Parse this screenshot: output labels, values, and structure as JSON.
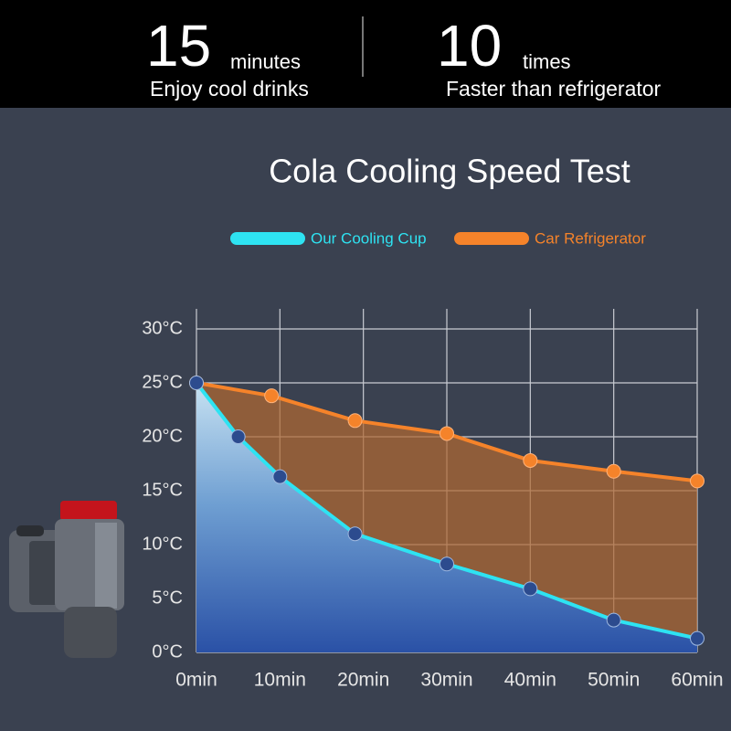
{
  "header": {
    "left": {
      "number": "15",
      "unit": "minutes",
      "caption": "Enjoy cool drinks"
    },
    "right": {
      "number": "10",
      "unit": "times",
      "caption": "Faster than refrigerator"
    }
  },
  "chart_data": {
    "type": "line",
    "title": "Cola Cooling Speed Test",
    "xlim": [
      0,
      60
    ],
    "xticks": [
      {
        "value": 0,
        "label": "0min"
      },
      {
        "value": 10,
        "label": "10min"
      },
      {
        "value": 20,
        "label": "20min"
      },
      {
        "value": 30,
        "label": "30min"
      },
      {
        "value": 40,
        "label": "40min"
      },
      {
        "value": 50,
        "label": "50min"
      },
      {
        "value": 60,
        "label": "60min"
      }
    ],
    "ylim": [
      0,
      30
    ],
    "yticks": [
      {
        "value": 0,
        "label": "0°C"
      },
      {
        "value": 5,
        "label": "5°C"
      },
      {
        "value": 10,
        "label": "10°C"
      },
      {
        "value": 15,
        "label": "15°C"
      },
      {
        "value": 20,
        "label": "20°C"
      },
      {
        "value": 25,
        "label": "25°C"
      },
      {
        "value": 30,
        "label": "30°C"
      }
    ],
    "grid": true,
    "series": [
      {
        "name": "Our Cooling Cup",
        "color": "#2ee3f2",
        "x": [
          0,
          5,
          10,
          19,
          30,
          40,
          50,
          60
        ],
        "values": [
          25,
          20,
          16.3,
          11,
          8.2,
          5.9,
          3,
          1.3
        ]
      },
      {
        "name": "Car Refrigerator",
        "color": "#f5832a",
        "x": [
          0,
          9,
          19,
          30,
          40,
          50,
          60
        ],
        "values": [
          25,
          23.8,
          21.5,
          20.3,
          17.8,
          16.8,
          15.9
        ]
      }
    ]
  }
}
